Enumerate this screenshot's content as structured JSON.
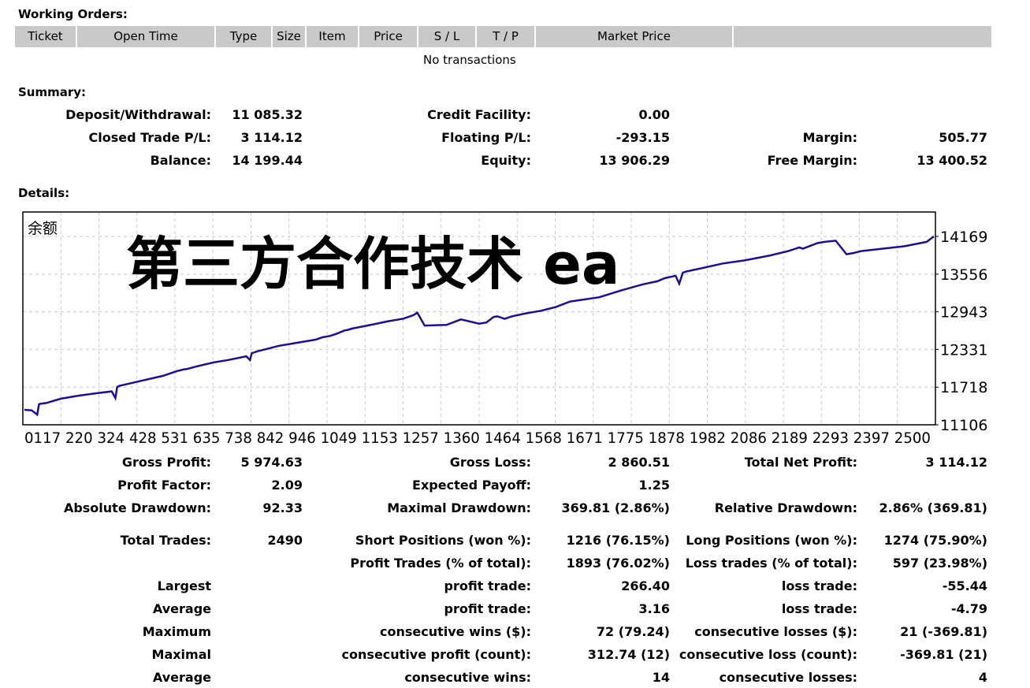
{
  "working_orders": {
    "title": "Working Orders:",
    "columns": [
      "Ticket",
      "Open Time",
      "Type",
      "Size",
      "Item",
      "Price",
      "S / L",
      "T / P",
      "Market Price",
      ""
    ],
    "empty_text": "No transactions"
  },
  "summary": {
    "title": "Summary:",
    "deposit_label": "Deposit/Withdrawal:",
    "deposit_value": "11 085.32",
    "credit_label": "Credit Facility:",
    "credit_value": "0.00",
    "closed_pl_label": "Closed Trade P/L:",
    "closed_pl_value": "3 114.12",
    "floating_pl_label": "Floating P/L:",
    "floating_pl_value": "-293.15",
    "margin_label": "Margin:",
    "margin_value": "505.77",
    "balance_label": "Balance:",
    "balance_value": "14 199.44",
    "equity_label": "Equity:",
    "equity_value": "13 906.29",
    "free_margin_label": "Free Margin:",
    "free_margin_value": "13 400.52"
  },
  "details": {
    "title": "Details:",
    "gross_profit_label": "Gross Profit:",
    "gross_profit_value": "5 974.63",
    "gross_loss_label": "Gross Loss:",
    "gross_loss_value": "2 860.51",
    "total_net_profit_label": "Total Net Profit:",
    "total_net_profit_value": "3 114.12",
    "profit_factor_label": "Profit Factor:",
    "profit_factor_value": "2.09",
    "expected_payoff_label": "Expected Payoff:",
    "expected_payoff_value": "1.25",
    "abs_drawdown_label": "Absolute Drawdown:",
    "abs_drawdown_value": "92.33",
    "max_drawdown_label": "Maximal Drawdown:",
    "max_drawdown_value": "369.81 (2.86%)",
    "rel_drawdown_label": "Relative Drawdown:",
    "rel_drawdown_value": "2.86% (369.81)",
    "total_trades_label": "Total Trades:",
    "total_trades_value": "2490",
    "short_pos_label": "Short Positions (won %):",
    "short_pos_value": "1216 (76.15%)",
    "long_pos_label": "Long Positions (won %):",
    "long_pos_value": "1274 (75.90%)",
    "profit_trades_label": "Profit Trades (% of total):",
    "profit_trades_value": "1893 (76.02%)",
    "loss_trades_label": "Loss trades (% of total):",
    "loss_trades_value": "597 (23.98%)",
    "largest_label": "Largest",
    "largest_profit_label": "profit trade:",
    "largest_profit_value": "266.40",
    "largest_loss_label": "loss trade:",
    "largest_loss_value": "-55.44",
    "average_label": "Average",
    "average_profit_label": "profit trade:",
    "average_profit_value": "3.16",
    "average_loss_label": "loss trade:",
    "average_loss_value": "-4.79",
    "maximum_label": "Maximum",
    "max_consec_wins_label": "consecutive wins ($):",
    "max_consec_wins_value": "72 (79.24)",
    "max_consec_losses_label": "consecutive losses ($):",
    "max_consec_losses_value": "21 (-369.81)",
    "maximal_label": "Maximal",
    "maximal_consec_profit_label": "consecutive profit (count):",
    "maximal_consec_profit_value": "312.74 (12)",
    "maximal_consec_loss_label": "consecutive loss (count):",
    "maximal_consec_loss_value": "-369.81 (21)",
    "average2_label": "Average",
    "avg_consec_wins_label": "consecutive wins:",
    "avg_consec_wins_value": "14",
    "avg_consec_losses_label": "consecutive losses:",
    "avg_consec_losses_value": "4"
  },
  "chart_data": {
    "type": "line",
    "title": "余额",
    "watermark": "第三方合作技术 ea",
    "line_color": "#1a0f99",
    "xlabels": [
      "0",
      "117",
      "220",
      "324",
      "428",
      "531",
      "635",
      "738",
      "842",
      "946",
      "1049",
      "1153",
      "1257",
      "1360",
      "1464",
      "1568",
      "1671",
      "1775",
      "1878",
      "1982",
      "2086",
      "2189",
      "2293",
      "2397",
      "2500"
    ],
    "ylabels": [
      "14169",
      "13556",
      "12943",
      "12331",
      "11718",
      "11106"
    ],
    "ylim": [
      11106,
      14169
    ],
    "xlim": [
      0,
      2500
    ],
    "grid": true,
    "x": [
      0,
      20,
      35,
      40,
      45,
      60,
      100,
      150,
      200,
      240,
      250,
      255,
      258,
      262,
      270,
      320,
      380,
      420,
      440,
      445,
      470,
      520,
      560,
      610,
      620,
      625,
      640,
      700,
      760,
      800,
      820,
      840,
      860,
      880,
      890,
      900,
      960,
      1000,
      1040,
      1060,
      1070,
      1080,
      1100,
      1160,
      1200,
      1250,
      1270,
      1290,
      1300,
      1320,
      1340,
      1380,
      1420,
      1440,
      1460,
      1500,
      1580,
      1640,
      1700,
      1740,
      1760,
      1790,
      1800,
      1810,
      1820,
      1860,
      1920,
      1980,
      2050,
      2100,
      2120,
      2130,
      2140,
      2180,
      2200,
      2230,
      2260,
      2280,
      2300,
      2360,
      2420,
      2480,
      2500
    ],
    "values": [
      11350,
      11340,
      11270,
      11440,
      11450,
      11460,
      11530,
      11580,
      11620,
      11650,
      11540,
      11720,
      11730,
      11740,
      11750,
      11820,
      11900,
      11980,
      12010,
      12010,
      12050,
      12120,
      12160,
      12220,
      12160,
      12270,
      12300,
      12390,
      12450,
      12490,
      12530,
      12550,
      12590,
      12640,
      12650,
      12670,
      12740,
      12790,
      12830,
      12870,
      12890,
      12930,
      12720,
      12730,
      12820,
      12750,
      12770,
      12860,
      12870,
      12830,
      12870,
      12920,
      12960,
      12990,
      13020,
      13110,
      13180,
      13290,
      13390,
      13440,
      13490,
      13530,
      13400,
      13580,
      13600,
      13650,
      13730,
      13780,
      13860,
      13930,
      13970,
      13990,
      13970,
      14060,
      14080,
      14100,
      13880,
      13900,
      13930,
      13970,
      14010,
      14080,
      14169
    ]
  }
}
